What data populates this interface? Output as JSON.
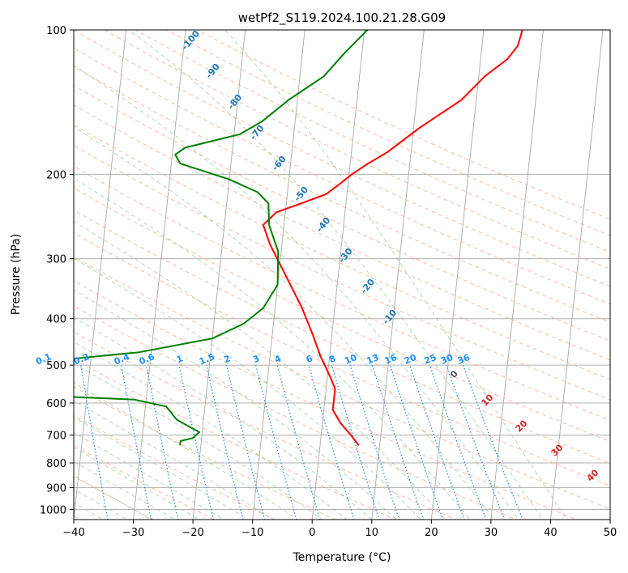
{
  "chart_data": {
    "type": "line",
    "title": "wetPf2_S119.2024.100.21.28.G09",
    "xlabel": "Temperature (°C)",
    "ylabel": "Pressure (hPa)",
    "xlim": [
      -40,
      50
    ],
    "ylim": [
      1050,
      100
    ],
    "y_scale": "log",
    "skew": true,
    "grid": true,
    "x_ticks": [
      -40,
      -30,
      -20,
      -10,
      0,
      10,
      20,
      30,
      40,
      50
    ],
    "y_ticks": [
      1000,
      900,
      800,
      700,
      600,
      500,
      400,
      300,
      200,
      100
    ],
    "series": [
      {
        "name": "",
        "color": "#ff0000",
        "points": [
          {
            "t": 6.5,
            "p": 735
          },
          {
            "t": 5.0,
            "p": 700
          },
          {
            "t": 3.0,
            "p": 660
          },
          {
            "t": 1.5,
            "p": 620
          },
          {
            "t": 1.5,
            "p": 590
          },
          {
            "t": 1.5,
            "p": 560
          },
          {
            "t": 0.5,
            "p": 530
          },
          {
            "t": -1.5,
            "p": 480
          },
          {
            "t": -3.3,
            "p": 430
          },
          {
            "t": -5.5,
            "p": 380
          },
          {
            "t": -8.5,
            "p": 330
          },
          {
            "t": -12.0,
            "p": 280
          },
          {
            "t": -13.5,
            "p": 255
          },
          {
            "t": -11.5,
            "p": 240
          },
          {
            "t": -7.5,
            "p": 230
          },
          {
            "t": -3.5,
            "p": 220
          },
          {
            "t": -1.5,
            "p": 210
          },
          {
            "t": 0.5,
            "p": 200
          },
          {
            "t": 3.0,
            "p": 190
          },
          {
            "t": 6.0,
            "p": 180
          },
          {
            "t": 11.0,
            "p": 160
          },
          {
            "t": 17.5,
            "p": 140
          },
          {
            "t": 21.0,
            "p": 125
          },
          {
            "t": 24.5,
            "p": 115
          },
          {
            "t": 26.0,
            "p": 108
          },
          {
            "t": 26.5,
            "p": 100
          }
        ]
      },
      {
        "name": "",
        "color": "#008000",
        "points": [
          {
            "t": -23.5,
            "p": 735
          },
          {
            "t": -23.5,
            "p": 720
          },
          {
            "t": -21.5,
            "p": 710
          },
          {
            "t": -20.5,
            "p": 690
          },
          {
            "t": -22.5,
            "p": 670
          },
          {
            "t": -24.5,
            "p": 650
          },
          {
            "t": -25.0,
            "p": 640
          },
          {
            "t": -26.5,
            "p": 610
          },
          {
            "t": -32.0,
            "p": 590
          },
          {
            "t": -46.0,
            "p": 580
          },
          {
            "t": -50.0,
            "p": 575
          },
          {
            "t": -55.0,
            "p": 510
          },
          {
            "t": -54.0,
            "p": 500
          },
          {
            "t": -32.0,
            "p": 470
          },
          {
            "t": -20.0,
            "p": 440
          },
          {
            "t": -15.0,
            "p": 410
          },
          {
            "t": -12.0,
            "p": 380
          },
          {
            "t": -10.0,
            "p": 340
          },
          {
            "t": -10.5,
            "p": 290
          },
          {
            "t": -12.5,
            "p": 255
          },
          {
            "t": -13.0,
            "p": 230
          },
          {
            "t": -15.0,
            "p": 218
          },
          {
            "t": -20.0,
            "p": 205
          },
          {
            "t": -28.5,
            "p": 190
          },
          {
            "t": -29.5,
            "p": 182
          },
          {
            "t": -28.0,
            "p": 176
          },
          {
            "t": -19.0,
            "p": 165
          },
          {
            "t": -15.5,
            "p": 155
          },
          {
            "t": -11.5,
            "p": 140
          },
          {
            "t": -6.0,
            "p": 125
          },
          {
            "t": -3.0,
            "p": 112
          },
          {
            "t": 0.5,
            "p": 100
          }
        ]
      }
    ],
    "dry_adiabat_labels": [
      "-100",
      "-90",
      "-80",
      "-70",
      "-60",
      "-50",
      "-40",
      "-30",
      "-20",
      "-10"
    ],
    "moist_adiabat_labels": [
      "0",
      "10",
      "20",
      "30",
      "40"
    ],
    "mixing_ratio_labels": [
      "0.1",
      "0.2",
      "0.4",
      "0.6",
      "1",
      "1.5",
      "2",
      "3",
      "4",
      "6",
      "8",
      "10",
      "13",
      "16",
      "20",
      "25",
      "30",
      "36"
    ]
  }
}
